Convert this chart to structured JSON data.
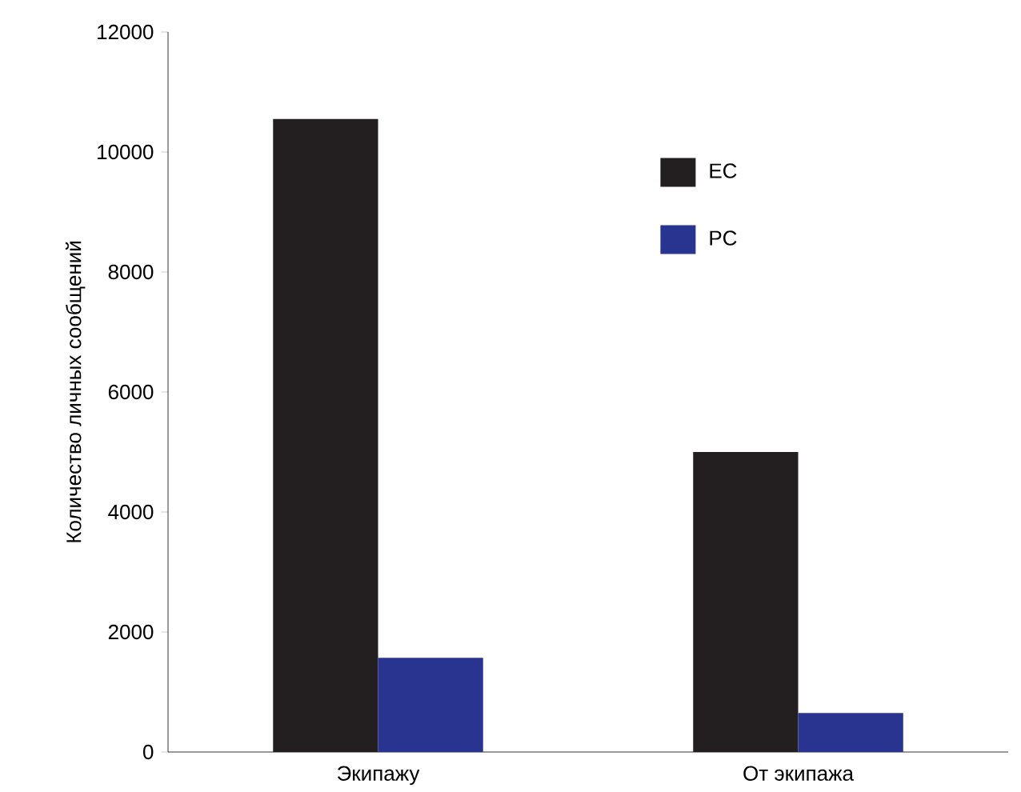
{
  "chart_data": {
    "type": "bar",
    "ylabel": "Количество личных сообщений",
    "categories": [
      "Экипажу",
      "От экипажа"
    ],
    "series": [
      {
        "name": "EC",
        "color": "#231f20",
        "values": [
          10550,
          5000
        ]
      },
      {
        "name": "PC",
        "color": "#28348f",
        "values": [
          1570,
          650
        ]
      }
    ],
    "ylim": [
      0,
      12000
    ],
    "yticks": [
      0,
      2000,
      4000,
      6000,
      8000,
      10000,
      12000
    ],
    "legend": "top right",
    "grid": false
  }
}
